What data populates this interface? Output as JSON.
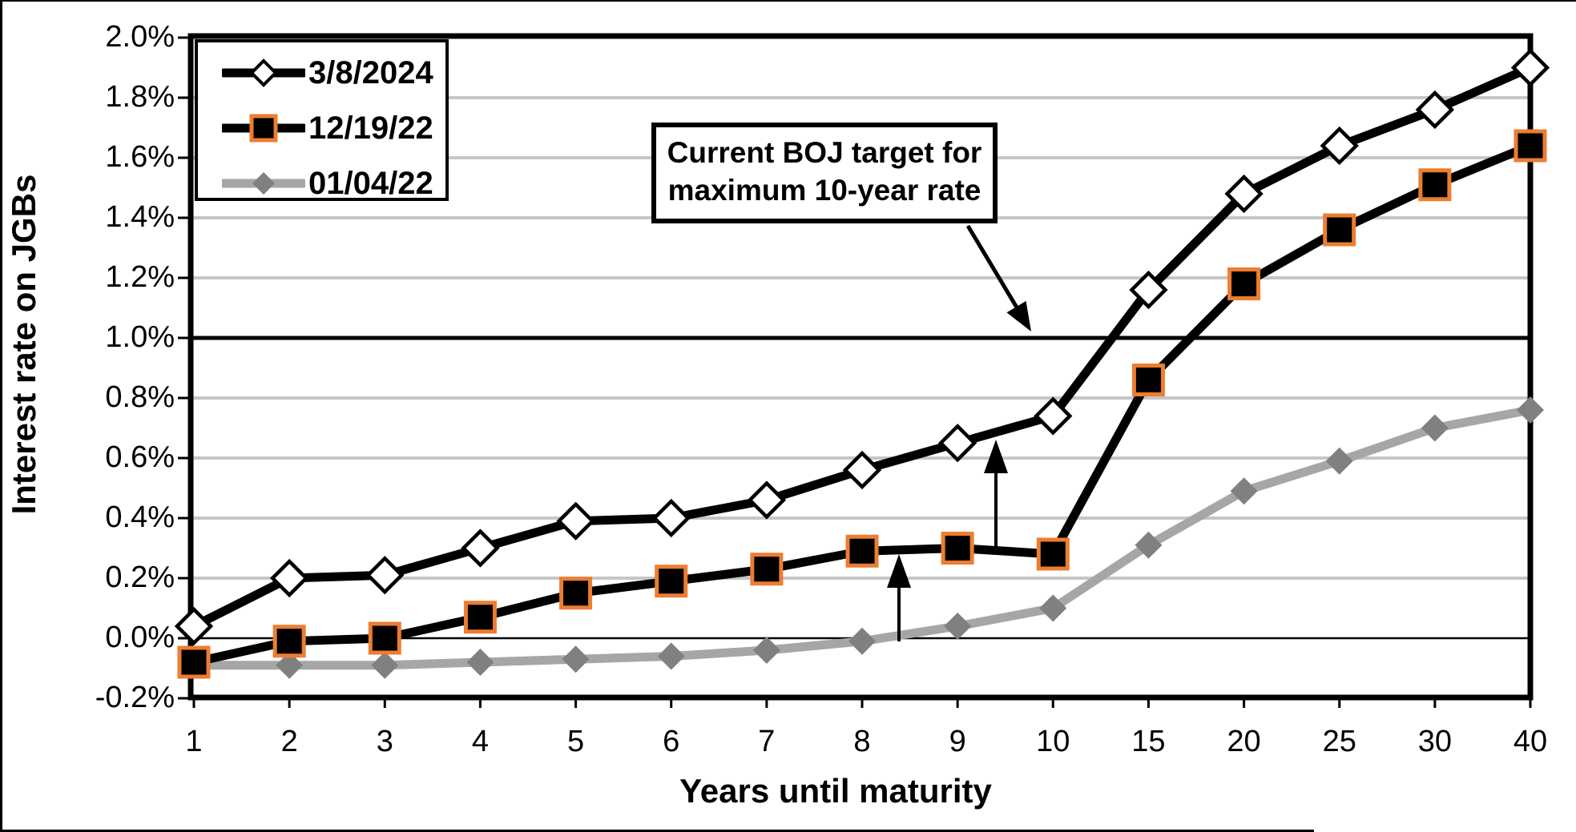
{
  "annotation": {
    "line1": "Current BOJ target for",
    "line2": "maximum 10-year rate"
  },
  "chart_data": {
    "type": "line",
    "title": "",
    "x_label": "Years until maturity",
    "y_label": "Interest rate on JGBs",
    "categories": [
      "1",
      "2",
      "3",
      "4",
      "5",
      "6",
      "7",
      "8",
      "9",
      "10",
      "15",
      "20",
      "25",
      "30",
      "40"
    ],
    "y_ticks": [
      "2.0%",
      "1.8%",
      "1.6%",
      "1.4%",
      "1.2%",
      "1.0%",
      "0.8%",
      "0.6%",
      "0.4%",
      "0.2%",
      "0.0%",
      "-0.2%"
    ],
    "ylim": [
      -0.2,
      2.0
    ],
    "grid": true,
    "legend_position": "top-left",
    "reference_line": {
      "value": 1.0,
      "label": "Current BOJ target for maximum 10-year rate"
    },
    "series": [
      {
        "name": "3/8/2024",
        "color": "#000000",
        "marker": "open-diamond",
        "marker_fill": "#ffffff",
        "marker_border": "#000000",
        "values": [
          0.04,
          0.2,
          0.21,
          0.3,
          0.39,
          0.4,
          0.46,
          0.56,
          0.65,
          0.74,
          1.16,
          1.48,
          1.64,
          1.76,
          1.9
        ]
      },
      {
        "name": "12/19/22",
        "color": "#000000",
        "marker": "square",
        "marker_fill": "#000000",
        "marker_border": "#ED7D31",
        "values": [
          -0.08,
          -0.01,
          0.0,
          0.07,
          0.15,
          0.19,
          0.23,
          0.29,
          0.3,
          0.28,
          0.86,
          1.18,
          1.36,
          1.51,
          1.64
        ]
      },
      {
        "name": "01/04/22",
        "color": "#A6A6A6",
        "marker": "diamond",
        "marker_fill": "#808080",
        "marker_border": "#808080",
        "values": [
          -0.09,
          -0.09,
          -0.09,
          -0.08,
          -0.07,
          -0.06,
          -0.04,
          -0.01,
          0.04,
          0.1,
          0.31,
          0.49,
          0.59,
          0.7,
          0.76
        ]
      }
    ],
    "colors": {
      "gridline": "#C6C6C6",
      "axis": "#000000",
      "target_line": "#000000",
      "gray_series_line": "#A6A6A6",
      "gray_series_marker": "#808080",
      "square_marker_border": "#ED7D31"
    }
  }
}
